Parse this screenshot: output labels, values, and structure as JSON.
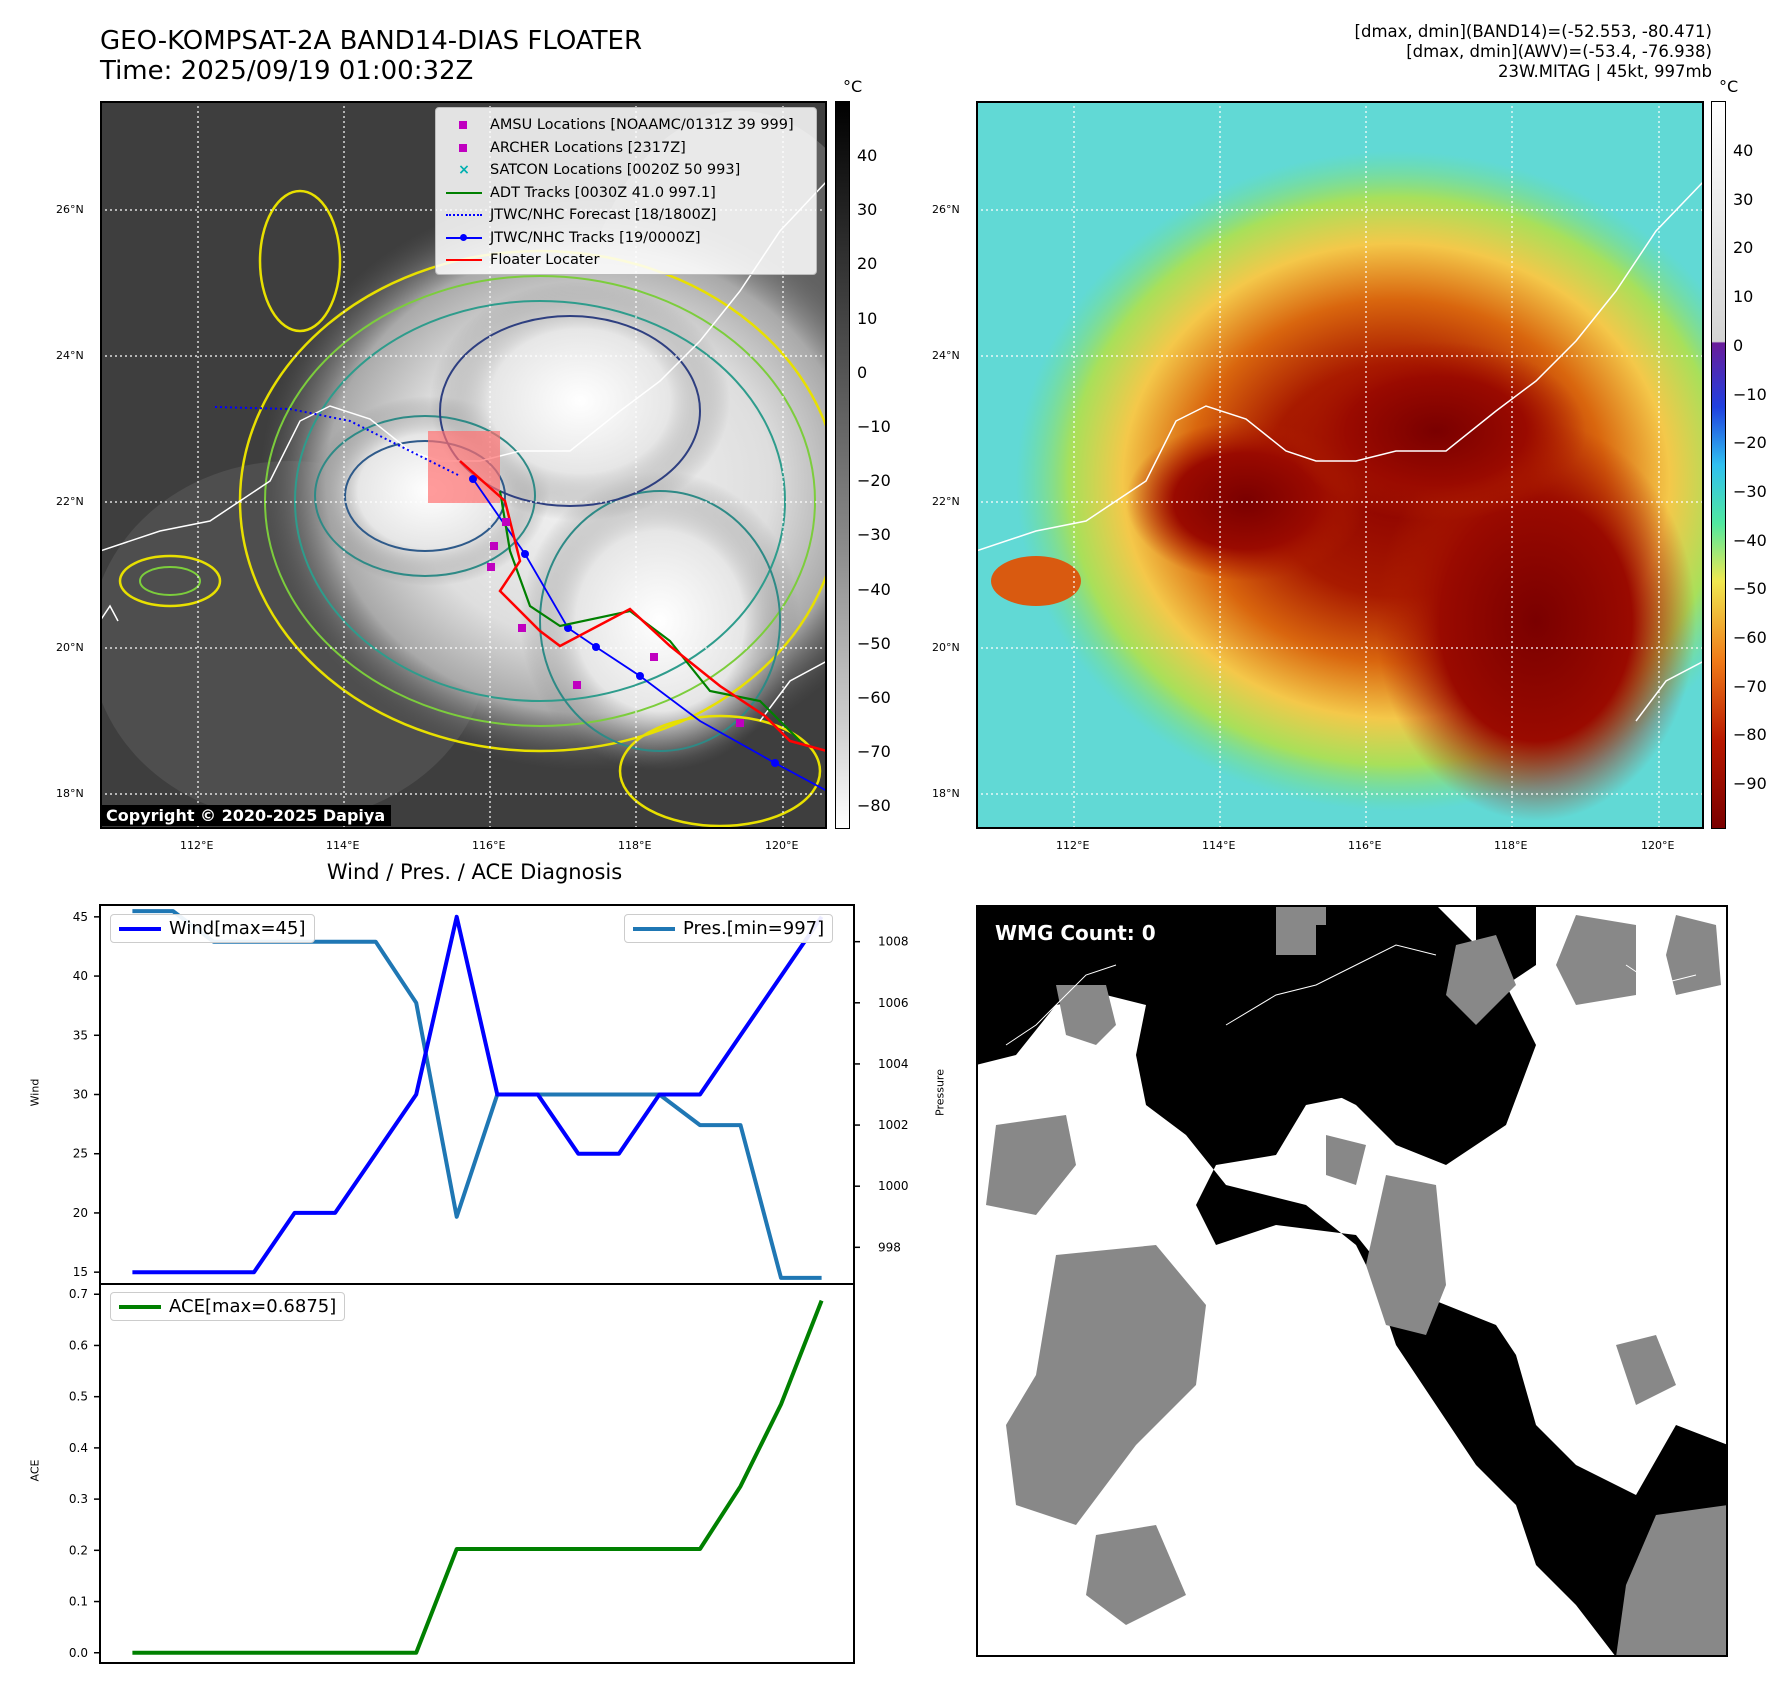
{
  "header": {
    "title": "GEO-KOMPSAT-2A BAND14-DIAS FLOATER",
    "time": "Time: 2025/09/19 01:00:32Z",
    "info_line1": "[dmax, dmin](BAND14)=(-52.553, -80.471)",
    "info_line2": "[dmax, dmin](AWV)=(-53.4, -76.938)",
    "info_line3": "23W.MITAG | 45kt, 997mb"
  },
  "map_axes": {
    "lat_labels": [
      "26°N",
      "24°N",
      "22°N",
      "20°N",
      "18°N"
    ],
    "lon_labels": [
      "112°E",
      "114°E",
      "116°E",
      "118°E",
      "120°E"
    ]
  },
  "ir_panel": {
    "legend": [
      {
        "label": "AMSU Locations [NOAAMC/0131Z 39 999]",
        "color": "#c000c0",
        "symbol": "square"
      },
      {
        "label": "ARCHER Locations [2317Z]",
        "color": "#c000c0",
        "symbol": "square"
      },
      {
        "label": "SATCON Locations [0020Z 50 993]",
        "color": "#00b0b0",
        "symbol": "x"
      },
      {
        "label": "ADT Tracks [0030Z 41.0 997.1]",
        "color": "#008000",
        "symbol": "line"
      },
      {
        "label": "JTWC/NHC Forecast [18/1800Z]",
        "color": "#0000ff",
        "symbol": "dotted"
      },
      {
        "label": "JTWC/NHC Tracks [19/0000Z]",
        "color": "#0000ff",
        "symbol": "line-dot"
      },
      {
        "label": "Floater Locater",
        "color": "#ff0000",
        "symbol": "line"
      }
    ],
    "copyright": "Copyright © 2020-2025 Dapiya",
    "colorbar_unit": "°C",
    "colorbar_ticks": [
      "40",
      "30",
      "20",
      "10",
      "0",
      "−10",
      "−20",
      "−30",
      "−40",
      "−50",
      "−60",
      "−70",
      "−80"
    ]
  },
  "awv_panel": {
    "colorbar_unit": "°C",
    "colorbar_ticks": [
      "40",
      "30",
      "20",
      "10",
      "0",
      "−10",
      "−20",
      "−30",
      "−40",
      "−50",
      "−60",
      "−70",
      "−80",
      "−90"
    ]
  },
  "wmg_panel": {
    "label": "WMG Count: 0"
  },
  "chart_data": [
    {
      "type": "line",
      "title": "Wind / Pres. / ACE Diagnosis",
      "ylabel": "Wind",
      "ylabel_right": "Pressure",
      "ylim": [
        14,
        46
      ],
      "ylim_right": [
        996.8,
        1009.2
      ],
      "yticks": [
        "45",
        "40",
        "35",
        "30",
        "25",
        "20",
        "15"
      ],
      "yticks_right": [
        "1008",
        "1006",
        "1004",
        "1002",
        "1000",
        "998"
      ],
      "x": [
        0,
        1,
        2,
        3,
        4,
        5,
        6,
        7,
        8,
        9,
        10,
        11,
        12,
        13,
        14,
        15,
        16,
        17
      ],
      "series": [
        {
          "name": "Wind[max=45]",
          "color": "#0000ff",
          "axis": "left",
          "values": [
            15,
            15,
            15,
            15,
            20,
            20,
            25,
            30,
            45,
            30,
            30,
            25,
            25,
            30,
            30,
            35,
            40,
            45
          ]
        },
        {
          "name": "Pres.[min=997]",
          "color": "#1f77b4",
          "axis": "right",
          "values": [
            1009,
            1009,
            1008,
            1008,
            1008,
            1008,
            1008,
            1006,
            999,
            1003,
            1003,
            1003,
            1003,
            1003,
            1002,
            1002,
            997,
            997
          ]
        }
      ]
    },
    {
      "type": "line",
      "ylabel": "ACE",
      "ylim": [
        -0.02,
        0.72
      ],
      "yticks": [
        "0.7",
        "0.6",
        "0.5",
        "0.4",
        "0.3",
        "0.2",
        "0.1",
        "0.0"
      ],
      "x": [
        0,
        1,
        2,
        3,
        4,
        5,
        6,
        7,
        8,
        9,
        10,
        11,
        12,
        13,
        14,
        15,
        16,
        17
      ],
      "series": [
        {
          "name": "ACE[max=0.6875]",
          "color": "#008000",
          "values": [
            0,
            0,
            0,
            0,
            0,
            0,
            0,
            0,
            0.2025,
            0.2025,
            0.2025,
            0.2025,
            0.2025,
            0.2025,
            0.2025,
            0.325,
            0.485,
            0.6875
          ]
        }
      ]
    }
  ]
}
